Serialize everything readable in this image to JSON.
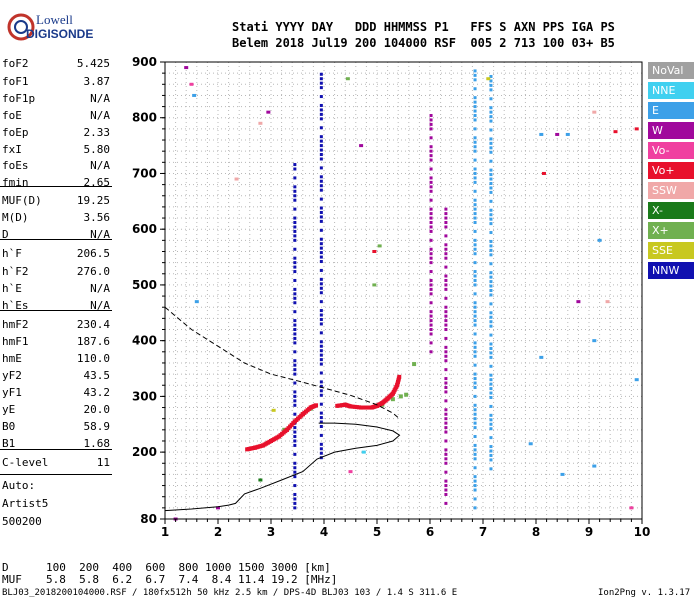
{
  "logo": {
    "line1": "Lowell",
    "line2": "DIGISONDE",
    "colors": {
      "ring": "#c0342b",
      "text": "#1a3a8a"
    }
  },
  "header": {
    "line1": "Stati YYYY DAY   DDD HHMMSS P1   FFS S AXN PPS IGA PS",
    "line2": "Belem 2018 Jul19 200 104000 RSF  005 2 713 100 03+ B5"
  },
  "params": [
    {
      "label": "foF2",
      "value": "5.425"
    },
    {
      "label": "foF1",
      "value": "3.87"
    },
    {
      "label": "foF1p",
      "value": "N/A"
    },
    {
      "label": "foE",
      "value": "N/A"
    },
    {
      "label": "foEp",
      "value": "2.33"
    },
    {
      "label": "fxI",
      "value": "5.80"
    },
    {
      "label": "foEs",
      "value": "N/A"
    },
    {
      "label": "fmin",
      "value": "2.65"
    },
    {
      "label": "MUF(D)",
      "value": "19.25"
    },
    {
      "label": "M(D)",
      "value": "3.56"
    },
    {
      "label": "D",
      "value": "N/A"
    },
    {
      "label": "h`F",
      "value": "206.5"
    },
    {
      "label": "h`F2",
      "value": "276.0"
    },
    {
      "label": "h`E",
      "value": "N/A"
    },
    {
      "label": "h`Es",
      "value": "N/A"
    },
    {
      "label": "hmF2",
      "value": "230.4"
    },
    {
      "label": "hmF1",
      "value": "187.6"
    },
    {
      "label": "hmE",
      "value": "110.0"
    },
    {
      "label": "yF2",
      "value": "43.5"
    },
    {
      "label": "yF1",
      "value": "43.2"
    },
    {
      "label": "yE",
      "value": "20.0"
    },
    {
      "label": "B0",
      "value": "58.9"
    },
    {
      "label": "B1",
      "value": "1.68"
    },
    {
      "label": "C-level",
      "value": "11"
    }
  ],
  "autoscale": {
    "line1": "Auto:",
    "line2": "Artist5",
    "line3": "500200"
  },
  "legend": [
    {
      "label": "NoVal",
      "color": "#a0a0a0"
    },
    {
      "label": "NNE",
      "color": "#40d0f0"
    },
    {
      "label": "E",
      "color": "#3ca0e8"
    },
    {
      "label": "W",
      "color": "#a0089c"
    },
    {
      "label": "Vo-",
      "color": "#f040a0"
    },
    {
      "label": "Vo+",
      "color": "#e8102c"
    },
    {
      "label": "SSW",
      "color": "#f0a8a8"
    },
    {
      "label": "X-",
      "color": "#1a7a1a"
    },
    {
      "label": "X+",
      "color": "#70b050"
    },
    {
      "label": "SSE",
      "color": "#c8c820"
    },
    {
      "label": "NNW",
      "color": "#1010b0"
    }
  ],
  "muf_table": {
    "d_label": "D",
    "d_values": "100  200  400  600  800 1000 1500 3000 [km]",
    "muf_label": "MUF",
    "muf_values": "5.8  5.8  6.2  6.7  7.4  8.4 11.4 19.2 [MHz]"
  },
  "footer": {
    "left": "BLJ03_2018200104000.RSF / 180fx512h 50 kHz 2.5 km / DPS-4D BLJ03 103 / 1.4 S 311.6 E",
    "right": "Ion2Png v. 1.3.17"
  },
  "chart_data": {
    "type": "scatter",
    "xlabel": "",
    "ylabel": "",
    "xlim": [
      1,
      10
    ],
    "ylim": [
      80,
      900
    ],
    "x_ticks": [
      1,
      2,
      3,
      4,
      5,
      6,
      7,
      8,
      9,
      10
    ],
    "y_ticks": [
      80,
      200,
      300,
      400,
      500,
      600,
      700,
      800,
      900
    ],
    "grid": true,
    "legend_position": "right",
    "echo_trace_oplus": [
      {
        "x": 2.55,
        "y": 205
      },
      {
        "x": 2.7,
        "y": 208
      },
      {
        "x": 2.85,
        "y": 212
      },
      {
        "x": 3.0,
        "y": 220
      },
      {
        "x": 3.15,
        "y": 228
      },
      {
        "x": 3.3,
        "y": 240
      },
      {
        "x": 3.45,
        "y": 255
      },
      {
        "x": 3.6,
        "y": 268
      },
      {
        "x": 3.75,
        "y": 280
      },
      {
        "x": 3.85,
        "y": 284
      },
      {
        "x": 4.25,
        "y": 283
      },
      {
        "x": 4.4,
        "y": 285
      },
      {
        "x": 4.5,
        "y": 282
      },
      {
        "x": 4.7,
        "y": 280
      },
      {
        "x": 4.9,
        "y": 280
      },
      {
        "x": 5.0,
        "y": 283
      },
      {
        "x": 5.1,
        "y": 288
      },
      {
        "x": 5.2,
        "y": 296
      },
      {
        "x": 5.3,
        "y": 305
      },
      {
        "x": 5.38,
        "y": 320
      },
      {
        "x": 5.42,
        "y": 335
      }
    ],
    "profile_curve": [
      {
        "x": 1.0,
        "y": 95
      },
      {
        "x": 1.5,
        "y": 98
      },
      {
        "x": 2.0,
        "y": 102
      },
      {
        "x": 2.2,
        "y": 105
      },
      {
        "x": 2.33,
        "y": 108
      },
      {
        "x": 2.4,
        "y": 115
      },
      {
        "x": 2.5,
        "y": 125
      },
      {
        "x": 2.8,
        "y": 135
      },
      {
        "x": 3.2,
        "y": 150
      },
      {
        "x": 3.6,
        "y": 165
      },
      {
        "x": 3.87,
        "y": 187.6
      },
      {
        "x": 4.2,
        "y": 200
      },
      {
        "x": 4.6,
        "y": 207
      },
      {
        "x": 5.0,
        "y": 212
      },
      {
        "x": 5.3,
        "y": 220
      },
      {
        "x": 5.425,
        "y": 230.4
      }
    ],
    "profile_upper": [
      {
        "x": 5.425,
        "y": 230.4
      },
      {
        "x": 5.3,
        "y": 238
      },
      {
        "x": 5.0,
        "y": 245
      },
      {
        "x": 4.6,
        "y": 250
      },
      {
        "x": 4.2,
        "y": 252
      },
      {
        "x": 3.9,
        "y": 252
      }
    ],
    "extrapolated_profile": [
      {
        "x": 1.0,
        "y": 460
      },
      {
        "x": 1.5,
        "y": 420
      },
      {
        "x": 2.0,
        "y": 390
      },
      {
        "x": 2.5,
        "y": 360
      },
      {
        "x": 3.0,
        "y": 340
      },
      {
        "x": 3.5,
        "y": 328
      },
      {
        "x": 4.0,
        "y": 315
      },
      {
        "x": 4.5,
        "y": 302
      },
      {
        "x": 5.0,
        "y": 285
      },
      {
        "x": 5.3,
        "y": 270
      },
      {
        "x": 5.425,
        "y": 260
      }
    ],
    "echo_trace_xplus": [
      {
        "x": 3.25,
        "y": 240
      },
      {
        "x": 3.45,
        "y": 255
      },
      {
        "x": 3.6,
        "y": 268
      },
      {
        "x": 3.75,
        "y": 278
      },
      {
        "x": 5.1,
        "y": 285
      },
      {
        "x": 5.3,
        "y": 295
      },
      {
        "x": 5.45,
        "y": 300
      },
      {
        "x": 5.55,
        "y": 303
      },
      {
        "x": 5.7,
        "y": 358
      }
    ],
    "vertical_echo_columns": [
      {
        "x": 3.45,
        "ymin": 100,
        "ymax": 720,
        "status": "NNW"
      },
      {
        "x": 3.95,
        "ymin": 190,
        "ymax": 880,
        "status": "NNW"
      },
      {
        "x": 6.02,
        "ymin": 380,
        "ymax": 810,
        "status": "W"
      },
      {
        "x": 6.3,
        "ymin": 100,
        "ymax": 640,
        "status": "W"
      },
      {
        "x": 6.85,
        "ymin": 100,
        "ymax": 890,
        "status": "E"
      },
      {
        "x": 7.15,
        "ymin": 170,
        "ymax": 880,
        "status": "E"
      }
    ],
    "scattered_echoes": [
      {
        "x": 1.4,
        "y": 890,
        "status": "W"
      },
      {
        "x": 1.5,
        "y": 860,
        "status": "Vo-"
      },
      {
        "x": 1.55,
        "y": 840,
        "status": "E"
      },
      {
        "x": 1.6,
        "y": 470,
        "status": "E"
      },
      {
        "x": 2.35,
        "y": 690,
        "status": "SSW"
      },
      {
        "x": 2.8,
        "y": 790,
        "status": "SSW"
      },
      {
        "x": 2.95,
        "y": 810,
        "status": "W"
      },
      {
        "x": 4.45,
        "y": 870,
        "status": "X+"
      },
      {
        "x": 4.7,
        "y": 750,
        "status": "W"
      },
      {
        "x": 4.95,
        "y": 560,
        "status": "Vo+"
      },
      {
        "x": 5.05,
        "y": 570,
        "status": "X+"
      },
      {
        "x": 4.95,
        "y": 500,
        "status": "X+"
      },
      {
        "x": 8.1,
        "y": 770,
        "status": "E"
      },
      {
        "x": 8.4,
        "y": 770,
        "status": "W"
      },
      {
        "x": 8.6,
        "y": 770,
        "status": "E"
      },
      {
        "x": 9.1,
        "y": 810,
        "status": "SSW"
      },
      {
        "x": 9.5,
        "y": 775,
        "status": "Vo+"
      },
      {
        "x": 9.9,
        "y": 780,
        "status": "Vo+"
      },
      {
        "x": 8.15,
        "y": 700,
        "status": "Vo+"
      },
      {
        "x": 8.8,
        "y": 470,
        "status": "W"
      },
      {
        "x": 9.2,
        "y": 580,
        "status": "E"
      },
      {
        "x": 9.35,
        "y": 470,
        "status": "SSW"
      },
      {
        "x": 9.1,
        "y": 400,
        "status": "E"
      },
      {
        "x": 8.1,
        "y": 370,
        "status": "E"
      },
      {
        "x": 9.9,
        "y": 330,
        "status": "E"
      },
      {
        "x": 7.9,
        "y": 215,
        "status": "E"
      },
      {
        "x": 8.5,
        "y": 160,
        "status": "E"
      },
      {
        "x": 9.1,
        "y": 175,
        "status": "E"
      },
      {
        "x": 9.8,
        "y": 100,
        "status": "Vo-"
      },
      {
        "x": 2.0,
        "y": 100,
        "status": "W"
      },
      {
        "x": 2.8,
        "y": 150,
        "status": "X-"
      },
      {
        "x": 4.5,
        "y": 165,
        "status": "Vo-"
      },
      {
        "x": 3.05,
        "y": 275,
        "status": "SSE"
      },
      {
        "x": 4.75,
        "y": 200,
        "status": "NNE"
      },
      {
        "x": 1.2,
        "y": 80,
        "status": "W"
      },
      {
        "x": 7.1,
        "y": 870,
        "status": "SSE"
      }
    ]
  }
}
